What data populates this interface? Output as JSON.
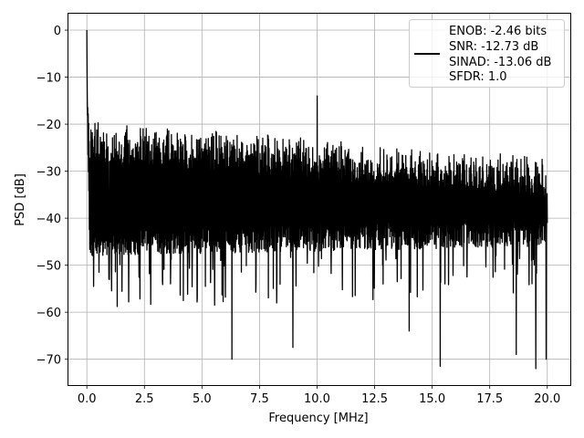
{
  "chart_data": {
    "type": "line",
    "xlabel": "Frequency [MHz]",
    "ylabel": "PSD [dB]",
    "xlim": [
      -0.8,
      21.0
    ],
    "ylim": [
      -75.5,
      3.5
    ],
    "xticks": [
      0.0,
      2.5,
      5.0,
      7.5,
      10.0,
      12.5,
      15.0,
      17.5,
      20.0
    ],
    "xtick_labels": [
      "0.0",
      "2.5",
      "5.0",
      "7.5",
      "10.0",
      "12.5",
      "15.0",
      "17.5",
      "20.0"
    ],
    "yticks": [
      0,
      -10,
      -20,
      -30,
      -40,
      -50,
      -60,
      -70
    ],
    "ytick_labels": [
      "0",
      "−10",
      "−20",
      "−30",
      "−40",
      "−50",
      "−60",
      "−70"
    ],
    "grid": true,
    "legend_position": "top-right",
    "series": [
      {
        "name": "ENOB: -2.46 bits\nSNR: -12.73 dB\nSINAD: -13.06 dB\nSFDR: 1.0",
        "color": "#000000",
        "x_range": [
          0.0,
          20.0
        ],
        "points": 2048,
        "noise_floor_upper_db": [
          -19,
          -27
        ],
        "noise_floor_lower_db": [
          -45,
          -43
        ],
        "dc_peak": {
          "x": 0.0,
          "y": 0.0
        },
        "spurs": [
          {
            "x": 10.0,
            "y": -14.0
          }
        ],
        "deep_nulls": [
          {
            "x": 6.3,
            "y": -70.0
          },
          {
            "x": 8.95,
            "y": -67.5
          },
          {
            "x": 15.35,
            "y": -71.5
          },
          {
            "x": 18.65,
            "y": -69.0
          },
          {
            "x": 19.5,
            "y": -72.0
          },
          {
            "x": 19.95,
            "y": -70.0
          },
          {
            "x": 14.0,
            "y": -64.0
          },
          {
            "x": 5.55,
            "y": -58.5
          }
        ]
      }
    ]
  },
  "legend": {
    "lines": [
      "ENOB: -2.46 bits",
      "SNR: -12.73 dB",
      "SINAD: -13.06 dB",
      "SFDR: 1.0"
    ]
  }
}
